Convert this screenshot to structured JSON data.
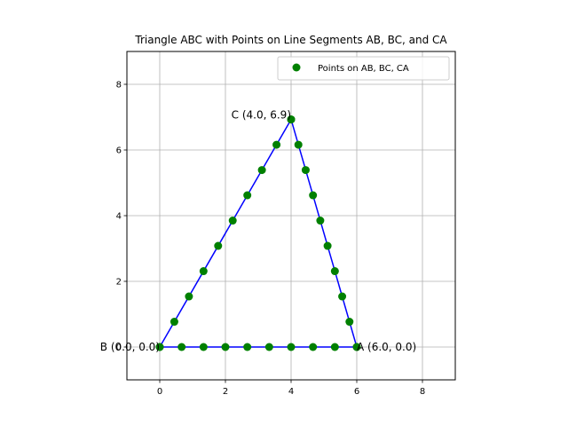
{
  "chart_data": {
    "type": "scatter",
    "title": "Triangle ABC with Points on Line Segments AB, BC, and CA",
    "xlim": [
      -1,
      9
    ],
    "ylim": [
      -1,
      9
    ],
    "xticks": [
      0,
      2,
      4,
      6,
      8
    ],
    "yticks": [
      0,
      2,
      4,
      6,
      8
    ],
    "grid": true,
    "legend_position": "top-right",
    "triangle": {
      "color": "#0000ff",
      "vertices": [
        {
          "name": "A",
          "x": 6.0,
          "y": 0.0,
          "label": "A (6.0, 0.0)"
        },
        {
          "name": "B",
          "x": 0.0,
          "y": 0.0,
          "label": "B (0.0, 0.0)"
        },
        {
          "name": "C",
          "x": 4.0,
          "y": 6.93,
          "label": "C (4.0, 6.9)"
        }
      ]
    },
    "series": [
      {
        "name": "Points on AB, BC, CA",
        "color": "#008000",
        "points": [
          [
            6.0,
            0.0
          ],
          [
            5.333,
            0.0
          ],
          [
            4.667,
            0.0
          ],
          [
            4.0,
            0.0
          ],
          [
            3.333,
            0.0
          ],
          [
            2.667,
            0.0
          ],
          [
            2.0,
            0.0
          ],
          [
            1.333,
            0.0
          ],
          [
            0.667,
            0.0
          ],
          [
            0.0,
            0.0
          ],
          [
            0.0,
            0.0
          ],
          [
            0.444,
            0.77
          ],
          [
            0.889,
            1.54
          ],
          [
            1.333,
            2.31
          ],
          [
            1.778,
            3.08
          ],
          [
            2.222,
            3.85
          ],
          [
            2.667,
            4.62
          ],
          [
            3.111,
            5.39
          ],
          [
            3.556,
            6.16
          ],
          [
            4.0,
            6.93
          ],
          [
            4.0,
            6.93
          ],
          [
            4.222,
            6.16
          ],
          [
            4.444,
            5.39
          ],
          [
            4.667,
            4.62
          ],
          [
            4.889,
            3.85
          ],
          [
            5.111,
            3.08
          ],
          [
            5.333,
            2.31
          ],
          [
            5.556,
            1.54
          ],
          [
            5.778,
            0.77
          ],
          [
            6.0,
            0.0
          ]
        ]
      }
    ]
  }
}
